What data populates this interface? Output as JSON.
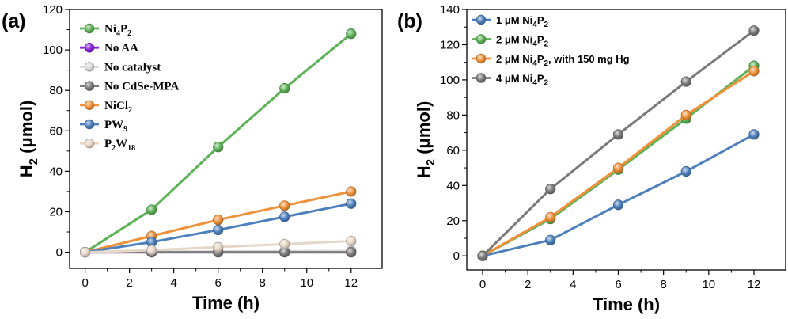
{
  "chart_data": [
    {
      "type": "line",
      "panel": "(a)",
      "xlabel": "Time (h)",
      "ylabel": "H",
      "ylabel_sub": "2",
      "ylabel_tail": " (μmol)",
      "xlim": [
        -0.7,
        13.4
      ],
      "ylim": [
        -8,
        120
      ],
      "xticks": [
        0,
        2,
        4,
        6,
        8,
        10,
        12
      ],
      "yticks": [
        0,
        20,
        40,
        60,
        80,
        100,
        120
      ],
      "x": [
        0,
        3,
        6,
        9,
        12
      ],
      "series": [
        {
          "name": "Ni4P2",
          "label_parts": [
            [
              "Ni",
              ""
            ],
            [
              "4",
              "sub"
            ],
            [
              "P",
              ""
            ],
            [
              "2",
              "sub"
            ]
          ],
          "color": "#5db257",
          "values": [
            0,
            21,
            52,
            81,
            108
          ]
        },
        {
          "name": "No AA",
          "label_parts": [
            [
              "No AA",
              ""
            ]
          ],
          "color": "#8a22d6",
          "values": [
            0,
            0,
            0,
            0,
            0
          ]
        },
        {
          "name": "No catalyst",
          "label_parts": [
            [
              "No catalyst",
              ""
            ]
          ],
          "color": "#d8d8d8",
          "values": [
            0,
            0.3,
            0.4,
            0.5,
            0.6
          ]
        },
        {
          "name": "No CdSe-MPA",
          "label_parts": [
            [
              "No CdSe-MPA",
              ""
            ]
          ],
          "color": "#7a7a7a",
          "values": [
            0,
            0,
            0,
            0,
            0
          ]
        },
        {
          "name": "NiCl2",
          "label_parts": [
            [
              "NiCl",
              ""
            ],
            [
              "2",
              "sub"
            ]
          ],
          "color": "#f0913a",
          "values": [
            0,
            8,
            16,
            23,
            30
          ]
        },
        {
          "name": "PW9",
          "label_parts": [
            [
              "PW",
              ""
            ],
            [
              "9",
              "sub"
            ]
          ],
          "color": "#4d80bd",
          "values": [
            0,
            5,
            11,
            17.5,
            24
          ]
        },
        {
          "name": "P2W18",
          "label_parts": [
            [
              "P",
              ""
            ],
            [
              "2",
              "sub"
            ],
            [
              "W",
              ""
            ],
            [
              "18",
              "sub"
            ]
          ],
          "color": "#e6d6c8",
          "values": [
            0,
            1,
            2.5,
            4,
            5.5
          ]
        }
      ]
    },
    {
      "type": "line",
      "panel": "(b)",
      "xlabel": "Time (h)",
      "ylabel": "H",
      "ylabel_sub": "2",
      "ylabel_tail": " (μmol)",
      "xlim": [
        -0.7,
        13.4
      ],
      "ylim": [
        -8,
        140
      ],
      "xticks": [
        0,
        2,
        4,
        6,
        8,
        10,
        12
      ],
      "yticks": [
        0,
        20,
        40,
        60,
        80,
        100,
        120,
        140
      ],
      "x": [
        0,
        3,
        6,
        9,
        12
      ],
      "series": [
        {
          "name": "1 μM Ni4P2",
          "label_parts": [
            [
              "1 μM Ni",
              ""
            ],
            [
              "4",
              "sub"
            ],
            [
              "P",
              ""
            ],
            [
              "2",
              "sub"
            ]
          ],
          "color": "#4d80bd",
          "values": [
            0,
            9,
            29,
            48,
            69
          ]
        },
        {
          "name": "2 μM Ni4P2",
          "label_parts": [
            [
              "2 μM Ni",
              ""
            ],
            [
              "4",
              "sub"
            ],
            [
              "P",
              ""
            ],
            [
              "2",
              "sub"
            ]
          ],
          "color": "#5db257",
          "values": [
            0,
            21,
            49,
            78,
            108
          ]
        },
        {
          "name": "2 μM Ni4P2, with 150 mg Hg",
          "label_parts": [
            [
              "2 μM Ni",
              ""
            ],
            [
              "4",
              "sub"
            ],
            [
              "P",
              ""
            ],
            [
              "2",
              "sub"
            ],
            [
              ",  with 150 mg Hg",
              ""
            ]
          ],
          "color": "#f0913a",
          "values": [
            0,
            22,
            50,
            80,
            105
          ]
        },
        {
          "name": "4 μM Ni4P2",
          "label_parts": [
            [
              "4 μM Ni",
              ""
            ],
            [
              "4",
              "sub"
            ],
            [
              "P",
              ""
            ],
            [
              "2",
              "sub"
            ]
          ],
          "color": "#7a7a7a",
          "values": [
            0,
            38,
            69,
            99,
            128
          ]
        }
      ]
    }
  ]
}
